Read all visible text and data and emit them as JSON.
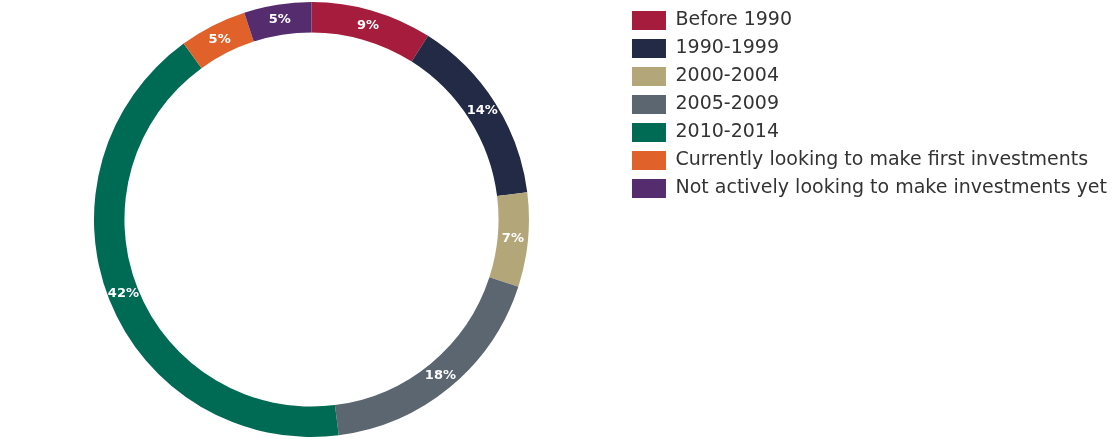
{
  "chart_data": {
    "type": "donut",
    "categories": [
      "Before 1990",
      "1990-1999",
      "2000-2004",
      "2005-2009",
      "2010-2014",
      "Currently looking to make first investments",
      "Not actively looking to make investments yet"
    ],
    "values": [
      9,
      14,
      7,
      18,
      42,
      5,
      5
    ],
    "colors": [
      "#a61c3c",
      "#222a45",
      "#b3a77a",
      "#5b6670",
      "#006b54",
      "#e0622a",
      "#552c6e"
    ],
    "value_labels": [
      "9%",
      "14%",
      "7%",
      "18%",
      "42%",
      "5%",
      "5%"
    ],
    "legend": "top right"
  }
}
